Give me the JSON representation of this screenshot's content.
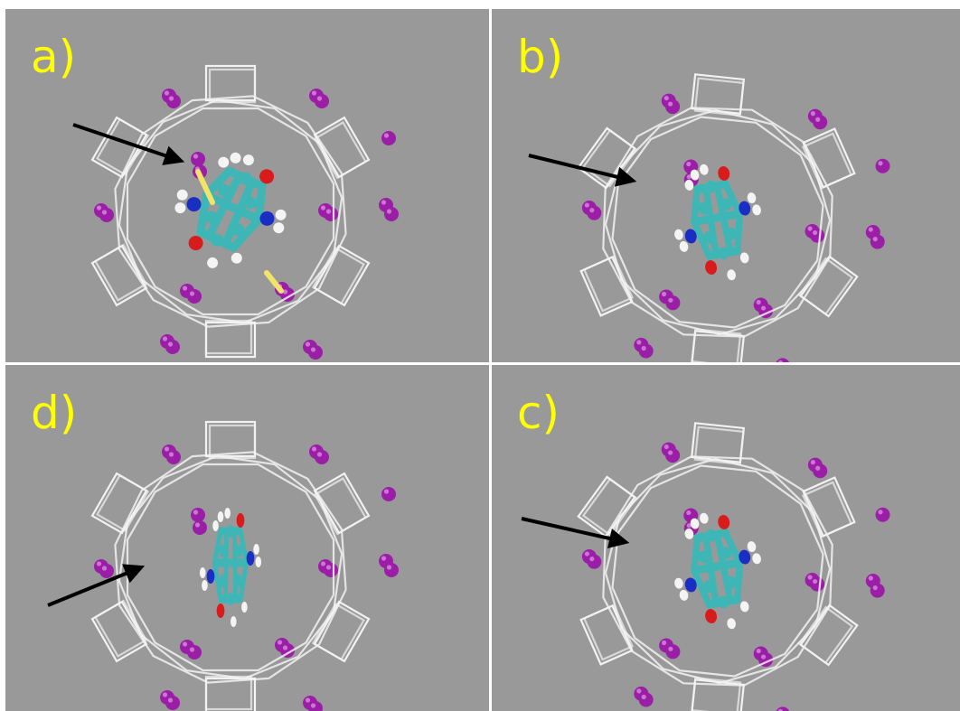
{
  "figure": {
    "panels": [
      {
        "label": "a)",
        "label_color": "#ffff00",
        "has_arrow": true,
        "has_bonds": true
      },
      {
        "label": "b)",
        "label_color": "#ffff00",
        "has_arrow": true,
        "has_bonds": false
      },
      {
        "label": "d)",
        "label_color": "#ffff00",
        "has_arrow": true,
        "has_bonds": false
      },
      {
        "label": "c)",
        "label_color": "#ffff00",
        "has_arrow": true,
        "has_bonds": false
      }
    ],
    "colors": {
      "background": "#999999",
      "ring": "#f2f2f2",
      "ion": "#9b1fa6",
      "carbon": "#3fb6b6",
      "oxygen": "#d81b1b",
      "nitrogen": "#1a2ec4",
      "hydrogen": "#f4f4f4",
      "bond": "#f2e36a",
      "arrow": "#000000"
    }
  }
}
